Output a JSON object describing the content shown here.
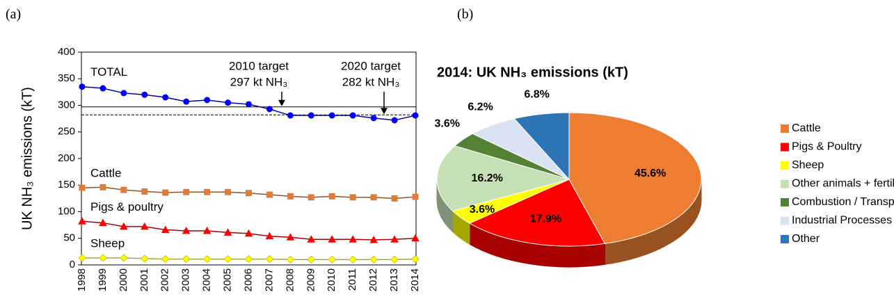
{
  "chart_data": [
    {
      "type": "line",
      "panel_label": "(a)",
      "y_label": "UK NH₃ emissions (kT)",
      "categories": [
        "1998",
        "1999",
        "2000",
        "2001",
        "2002",
        "2003",
        "2004",
        "2005",
        "2006",
        "2007",
        "2008",
        "2009",
        "2010",
        "2011",
        "2012",
        "2013",
        "2014"
      ],
      "ylim": [
        0,
        400
      ],
      "yticks": [
        0,
        50,
        100,
        150,
        200,
        250,
        300,
        350,
        400
      ],
      "series": [
        {
          "name": "TOTAL",
          "color": "#0000ff",
          "marker": "circle",
          "values": [
            335,
            332,
            323,
            320,
            315,
            307,
            310,
            305,
            302,
            293,
            281,
            281,
            281,
            281,
            276,
            272,
            281
          ]
        },
        {
          "name": "Cattle",
          "color": "#e07b39",
          "marker": "square",
          "values": [
            145,
            146,
            141,
            138,
            136,
            137,
            137,
            137,
            135,
            132,
            129,
            127,
            129,
            127,
            127,
            125,
            128
          ]
        },
        {
          "name": "Pigs & poultry",
          "color": "#ff0000",
          "marker": "triangle",
          "values": [
            82,
            79,
            72,
            72,
            66,
            64,
            64,
            61,
            59,
            54,
            52,
            48,
            48,
            48,
            47,
            48,
            50
          ]
        },
        {
          "name": "Sheep",
          "color": "#ffff00",
          "marker": "diamond",
          "values": [
            13,
            13,
            13,
            12,
            11,
            11,
            11,
            11,
            11,
            11,
            10,
            10,
            10,
            10,
            10,
            10,
            11
          ]
        }
      ],
      "annotations": [
        {
          "text": [
            "2010 target",
            "297 kt NH₃"
          ],
          "value": 297,
          "line": "solid"
        },
        {
          "text": [
            "2020 target",
            "282 kt NH₃"
          ],
          "value": 282,
          "line": "dashed"
        }
      ]
    },
    {
      "type": "pie",
      "panel_label": "(b)",
      "title": "2014: UK NH₃ emissions (kT)",
      "categories": [
        "Cattle",
        "Pigs & Poultry",
        "Sheep",
        "Other animals + fertiliser",
        "Combustion / Transport",
        "Industrial Processes",
        "Other"
      ],
      "values": [
        45.6,
        17.9,
        3.6,
        16.2,
        3.6,
        6.2,
        6.8
      ],
      "value_labels": [
        "45.6%",
        "17.9%",
        "3.6%",
        "16.2%",
        "3.6%",
        "6.2%",
        "6.8%"
      ],
      "colors": [
        "#ed7d31",
        "#ff0000",
        "#ffff00",
        "#c5e0b4",
        "#548235",
        "#dae3f3",
        "#2e75b6"
      ],
      "legend": "right"
    }
  ]
}
